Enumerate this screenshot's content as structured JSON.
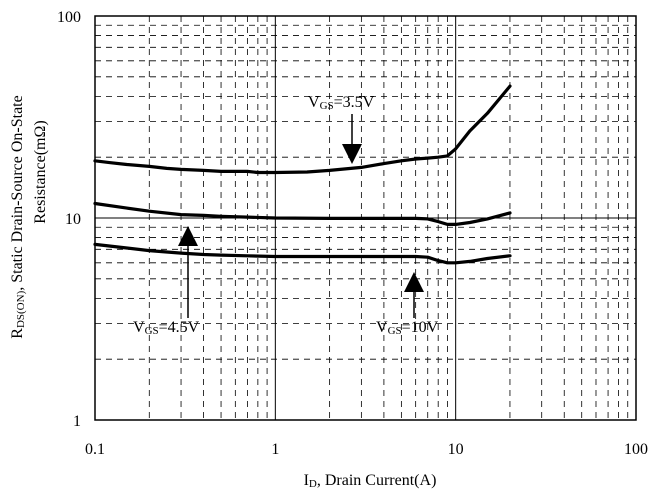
{
  "chart_data": {
    "type": "line",
    "xscale": "log",
    "yscale": "log",
    "xlim": [
      0.1,
      100
    ],
    "ylim": [
      1,
      100
    ],
    "xticks": [
      "0.1",
      "1",
      "10",
      "100"
    ],
    "yticks": [
      "1",
      "10",
      "100"
    ],
    "grid": true,
    "xlabel": {
      "main": "I",
      "sub": "D",
      "rest": ", Drain Current(A)"
    },
    "ylabel": {
      "line1_main": "R",
      "line1_sub": "DS(ON)",
      "line1_rest": ", Static Drain-Source On-State",
      "line2": "Resistance(mΩ)"
    },
    "series": [
      {
        "label_main": "V",
        "label_sub": "GS",
        "label_rest": "=3.5V",
        "x": [
          0.1,
          0.12,
          0.15,
          0.2,
          0.25,
          0.3,
          0.4,
          0.5,
          0.7,
          0.8,
          1.0,
          1.5,
          2.0,
          3.0,
          4.0,
          5.0,
          6.0,
          7.0,
          8.0,
          9.0,
          10,
          12,
          15,
          20
        ],
        "y": [
          19.2,
          18.8,
          18.4,
          18.0,
          17.6,
          17.4,
          17.2,
          17.0,
          17.0,
          16.8,
          16.8,
          16.9,
          17.2,
          17.8,
          18.6,
          19.2,
          19.6,
          19.8,
          20.0,
          20.3,
          22.0,
          27.0,
          33.0,
          45.0
        ]
      },
      {
        "label_main": "V",
        "label_sub": "GS",
        "label_rest": "=4.5V",
        "x": [
          0.1,
          0.15,
          0.2,
          0.3,
          0.4,
          0.5,
          0.7,
          1.0,
          2.0,
          3.0,
          5.0,
          6.0,
          7.0,
          8.0,
          9.0,
          10,
          12,
          15,
          20
        ],
        "y": [
          11.8,
          11.2,
          10.8,
          10.4,
          10.3,
          10.2,
          10.1,
          10.0,
          9.95,
          9.95,
          9.95,
          9.95,
          9.9,
          9.6,
          9.3,
          9.3,
          9.5,
          9.9,
          10.6
        ]
      },
      {
        "label_main": "V",
        "label_sub": "GS",
        "label_rest": "=10V",
        "x": [
          0.1,
          0.15,
          0.2,
          0.3,
          0.4,
          0.5,
          0.7,
          1.0,
          2.0,
          3.0,
          5.0,
          6.0,
          7.0,
          8.0,
          9.0,
          10,
          12,
          15,
          20
        ],
        "y": [
          7.4,
          7.1,
          6.9,
          6.7,
          6.6,
          6.55,
          6.5,
          6.45,
          6.45,
          6.45,
          6.45,
          6.45,
          6.4,
          6.15,
          6.0,
          6.0,
          6.1,
          6.3,
          6.5
        ]
      }
    ]
  }
}
